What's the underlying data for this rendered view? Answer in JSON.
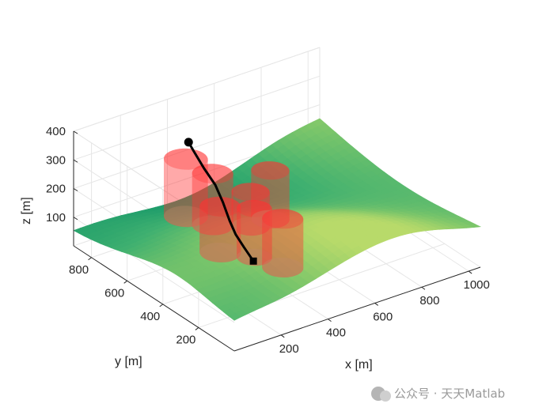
{
  "chart_data": {
    "type": "surface",
    "xlabel": "x [m]",
    "ylabel": "y [m]",
    "zlabel": "z [m]",
    "xticks": [
      "200",
      "400",
      "600",
      "800",
      "1000"
    ],
    "yticks": [
      "200",
      "400",
      "600",
      "800"
    ],
    "zticks": [
      "100",
      "200",
      "300",
      "400"
    ],
    "xlim": [
      0,
      1050
    ],
    "ylim": [
      0,
      900
    ],
    "zlim": [
      0,
      400
    ],
    "grid": true,
    "surface_colormap": [
      "#1a9a6a",
      "#3fb070",
      "#7dc66a",
      "#b8da6a"
    ],
    "obstacle_color": "#ff3333",
    "obstacles": [
      {
        "x": 220,
        "y": 560,
        "r": 75,
        "z0": 180,
        "z1": 380
      },
      {
        "x": 380,
        "y": 620,
        "r": 70,
        "z0": 80,
        "z1": 260
      },
      {
        "x": 260,
        "y": 420,
        "r": 70,
        "z0": 100,
        "z1": 260
      },
      {
        "x": 420,
        "y": 460,
        "r": 65,
        "z0": 130,
        "z1": 250
      },
      {
        "x": 580,
        "y": 560,
        "r": 65,
        "z0": 70,
        "z1": 240
      },
      {
        "x": 420,
        "y": 280,
        "r": 70,
        "z0": 60,
        "z1": 230
      },
      {
        "x": 360,
        "y": 360,
        "r": 60,
        "z0": 80,
        "z1": 250
      }
    ],
    "path": {
      "start": {
        "x": 310,
        "y": 300,
        "z": 105
      },
      "end": {
        "x": 300,
        "y": 650,
        "z": 380
      },
      "points": [
        [
          310,
          300,
          105
        ],
        [
          300,
          340,
          140
        ],
        [
          295,
          380,
          170
        ],
        [
          300,
          420,
          200
        ],
        [
          310,
          470,
          240
        ],
        [
          315,
          520,
          280
        ],
        [
          305,
          570,
          320
        ],
        [
          300,
          620,
          360
        ],
        [
          300,
          650,
          380
        ]
      ]
    }
  },
  "watermark": {
    "text": "公众号 · 天天Matlab"
  }
}
